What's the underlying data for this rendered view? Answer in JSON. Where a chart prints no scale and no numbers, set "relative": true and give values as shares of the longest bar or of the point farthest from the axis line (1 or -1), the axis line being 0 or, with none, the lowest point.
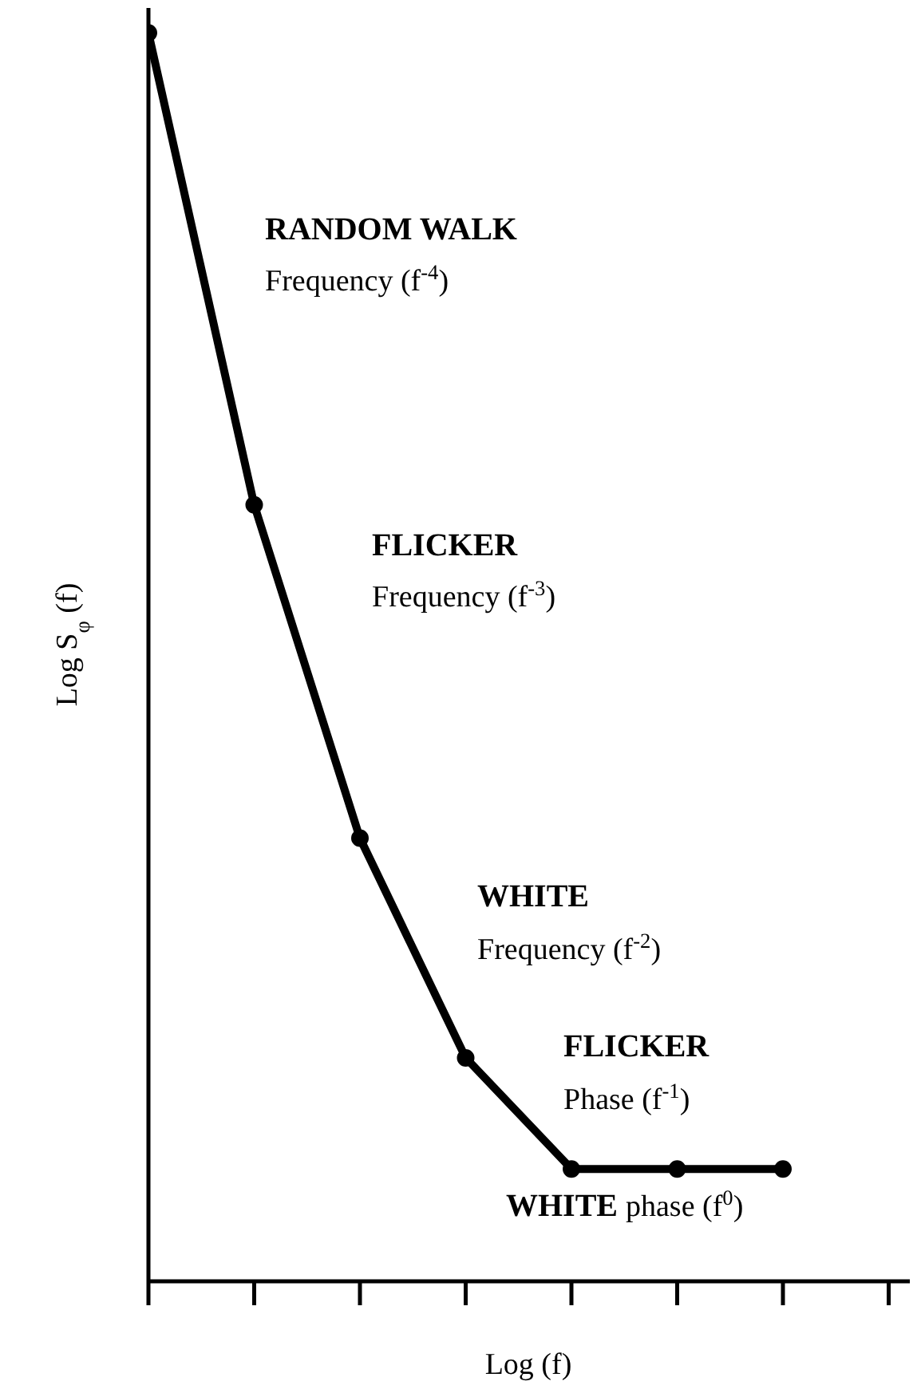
{
  "chart_data": {
    "type": "line",
    "relative": true,
    "xlabel": "Log (f)",
    "ylabel": "Log S$_{φ}$ (f)",
    "categories": [
      null,
      null,
      null,
      null,
      null,
      null,
      null,
      null
    ],
    "series": [
      {
        "color": "#000000",
        "values": [
          1,
          0.622,
          0.355,
          0.179,
          0.09,
          0.09,
          0.09,
          null
        ]
      }
    ],
    "marker": "circle",
    "line_style": "solid",
    "grid": false,
    "legend": false,
    "annotations": [
      "RANDOM WALK",
      "Frequency (f$^{-4}$)",
      "FLICKER",
      "Frequency (f$^{-3}$)",
      "WHITE",
      "Frequency (f$^{-2}$)",
      "FLICKER",
      "Phase (f$^{-1}$)",
      "WHITE",
      "phase (f$^{0}$)"
    ]
  }
}
